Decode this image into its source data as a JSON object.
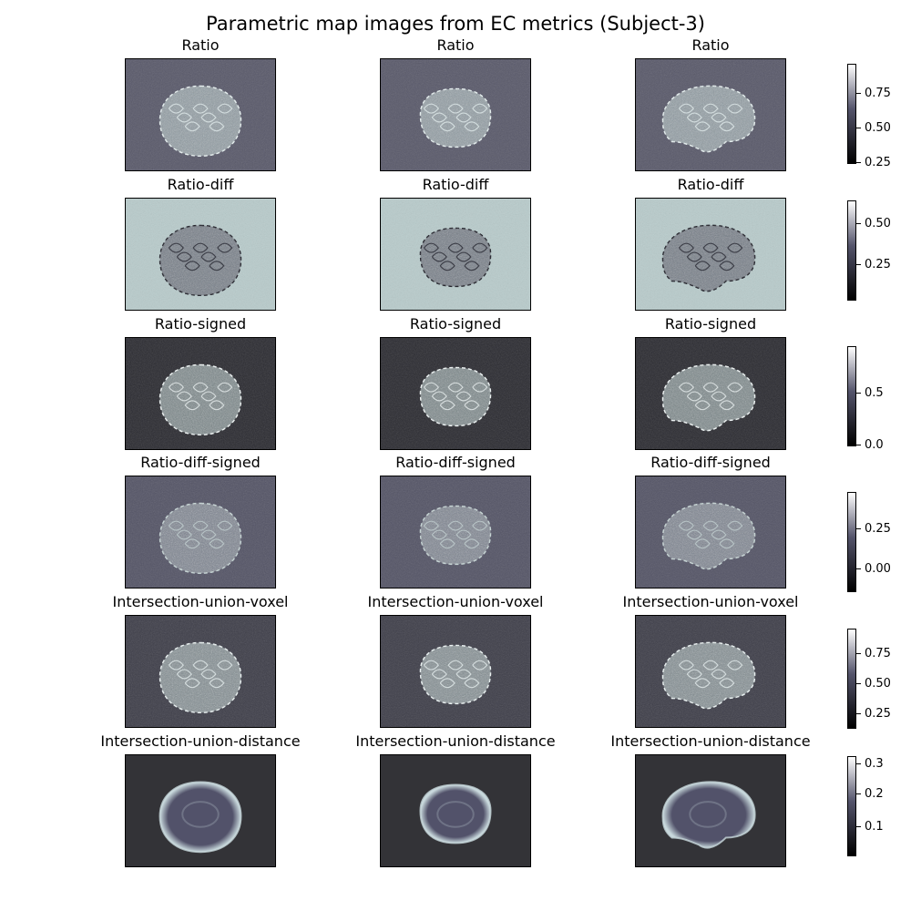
{
  "figure_title": "Parametric map images from EC metrics (Subject-3)",
  "colormap": {
    "name": "bone",
    "low": "#000000",
    "mid": "#54546b",
    "high": "#ffffff"
  },
  "rows": [
    {
      "title": "Ratio",
      "background": "#585869",
      "brain": "#b9d0cf",
      "edge": "#e8f2f2",
      "texture": "speckle",
      "colorbar": {
        "ticks": [
          "0.75",
          "0.50",
          "0.25"
        ]
      }
    },
    {
      "title": "Ratio-diff",
      "background": "#b8cbcb",
      "brain": "#3f3f52",
      "edge": "#1d1d26",
      "texture": "speckle-inverted",
      "colorbar": {
        "ticks": [
          "0.50",
          "0.25"
        ]
      }
    },
    {
      "title": "Ratio-signed",
      "background": "#2a2a30",
      "brain": "#b7cccc",
      "edge": "#f2f8f8",
      "texture": "speckle",
      "colorbar": {
        "ticks": [
          "0.5",
          "0.0"
        ]
      }
    },
    {
      "title": "Ratio-diff-signed",
      "background": "#535365",
      "brain": "#9aa8b0",
      "edge": "#c7d6d6",
      "texture": "speckle",
      "colorbar": {
        "ticks": [
          "0.25",
          "0.00"
        ]
      }
    },
    {
      "title": "Intersection-union-voxel",
      "background": "#3d3d48",
      "brain": "#b6cbcb",
      "edge": "#eef6f6",
      "texture": "speckle",
      "colorbar": {
        "ticks": [
          "0.75",
          "0.50",
          "0.25"
        ]
      }
    },
    {
      "title": "Intersection-union-distance",
      "background": "#333337",
      "brain": "#52526a",
      "edge": "#c8d8dc",
      "texture": "smooth",
      "colorbar": {
        "ticks": [
          "0.3",
          "0.2",
          "0.1"
        ]
      }
    }
  ],
  "columns": [
    {
      "view": "axial"
    },
    {
      "view": "coronal"
    },
    {
      "view": "sagittal"
    }
  ]
}
